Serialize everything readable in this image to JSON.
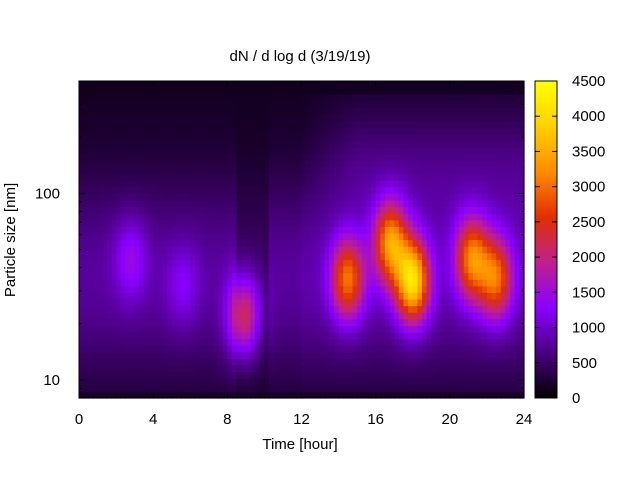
{
  "chart_data": {
    "type": "heatmap",
    "title": "dN / d log d (3/19/19)",
    "xlabel": "Time [hour]",
    "ylabel": "Particle size [nm]",
    "xlim": [
      0,
      24
    ],
    "xticks": [
      0,
      4,
      8,
      12,
      16,
      20,
      24
    ],
    "xtick_labels": [
      "0",
      "4",
      "8",
      "12",
      "16",
      "20",
      "24"
    ],
    "ylim": [
      8,
      400
    ],
    "yscale": "log",
    "yticks": [
      10,
      100
    ],
    "ytick_labels": [
      "10",
      "100"
    ],
    "colorbar": {
      "range": [
        0,
        4500
      ],
      "ticks": [
        0,
        500,
        1000,
        1500,
        2000,
        2500,
        3000,
        3500,
        4000,
        4500
      ],
      "tick_labels": [
        "0",
        "500",
        "1000",
        "1500",
        "2000",
        "2500",
        "3000",
        "3500",
        "4000",
        "4500"
      ],
      "colormap": [
        "#000000",
        "#4b0082",
        "#8a00ff",
        "#c0208f",
        "#e03000",
        "#ff8c00",
        "#ffd000",
        "#ffff00"
      ]
    },
    "grid": false,
    "features": [
      {
        "hour": 2.8,
        "diameter_nm": 45,
        "value": 1400
      },
      {
        "hour": 5.6,
        "diameter_nm": 32,
        "value": 1200
      },
      {
        "hour": 8.9,
        "diameter_nm": 22,
        "value": 2400
      },
      {
        "hour": 14.5,
        "diameter_nm": 35,
        "value": 2900
      },
      {
        "hour": 16.8,
        "diameter_nm": 55,
        "value": 3200
      },
      {
        "hour": 18.0,
        "diameter_nm": 34,
        "value": 3900
      },
      {
        "hour": 21.2,
        "diameter_nm": 45,
        "value": 3000
      },
      {
        "hour": 22.5,
        "diameter_nm": 35,
        "value": 2800
      }
    ]
  }
}
